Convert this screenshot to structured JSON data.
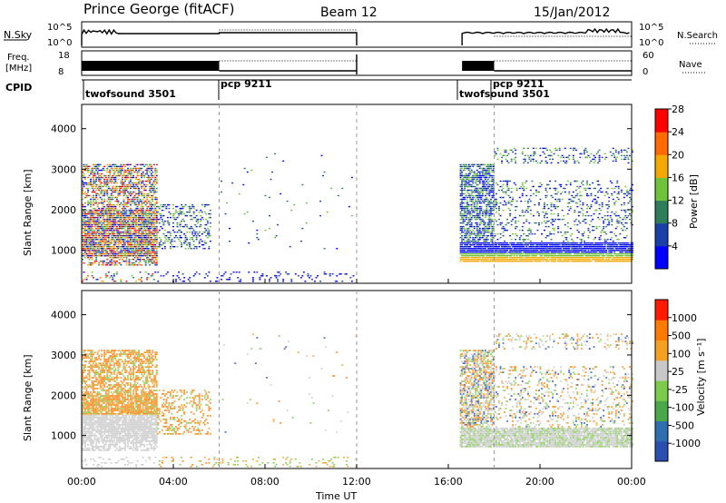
{
  "header": {
    "station": "Prince George (fitACF)",
    "beam": "Beam 12",
    "date": "15/Jan/2012"
  },
  "panels": {
    "nsky": {
      "left_label": "N.Sky",
      "right_label": "N.Search",
      "left_ticks": [
        "10^5",
        "10^0"
      ],
      "right_ticks": [
        "10^5",
        "10^0"
      ]
    },
    "freq": {
      "left_label_1": "Freq.",
      "left_label_2": "[MHz]",
      "right_label": "Nave",
      "left_ticks": [
        "18",
        "8"
      ],
      "right_ticks": [
        "60",
        "0"
      ]
    },
    "cpid": {
      "label": "CPID",
      "segments": [
        "twofsound 3501",
        "pcp 9211",
        "twofsound 3501",
        "pcp 9211"
      ]
    }
  },
  "chart_data": [
    {
      "type": "heatmap",
      "title": "",
      "xlabel": "",
      "ylabel": "Slant Range [km]",
      "xlim": [
        0,
        24
      ],
      "ylim": [
        180,
        4600
      ],
      "yticks": [
        1000,
        2000,
        3000,
        4000
      ],
      "colorbar": {
        "label": "Power [dB]",
        "ticks": [
          "4",
          "8",
          "12",
          "16",
          "20",
          "24",
          "28"
        ],
        "colors": [
          "#0000ff",
          "#1a3fa8",
          "#2e7d5a",
          "#6fc23a",
          "#f5a800",
          "#ff6a00",
          "#ff0000"
        ]
      },
      "notes": "Backscatter 00:00-06:00 (500-3500 km) and 16:30-24:00 (700-3500 km)"
    },
    {
      "type": "heatmap",
      "title": "",
      "xlabel": "Time UT",
      "ylabel": "Slant Range [km]",
      "xlim": [
        0,
        24
      ],
      "ylim": [
        180,
        4600
      ],
      "yticks": [
        1000,
        2000,
        3000,
        4000
      ],
      "xticks": [
        "00:00",
        "04:00",
        "08:00",
        "12:00",
        "16:00",
        "20:00",
        "00:00"
      ],
      "colorbar": {
        "label": "Velocity [m s⁻¹]",
        "ticks": [
          "1000",
          "500",
          "100",
          "25",
          "-25",
          "-100",
          "-500",
          "-1000"
        ],
        "colors": [
          "#2b4fb0",
          "#2f6fb0",
          "#4aa84a",
          "#7ccb4a",
          "#c8c8c8",
          "#f5a020",
          "#ff7a00",
          "#ff1a00"
        ]
      }
    }
  ],
  "colors": {
    "power": [
      "#0000ff",
      "#1a3fa8",
      "#2e7d5a",
      "#6fc23a",
      "#f5a800",
      "#ff6a00",
      "#ff0000"
    ],
    "velocity": [
      "#2b4fb0",
      "#2f6fb0",
      "#4aa84a",
      "#7ccb4a",
      "#c8c8c8",
      "#f5a020",
      "#ff7a00",
      "#ff1a00"
    ]
  }
}
